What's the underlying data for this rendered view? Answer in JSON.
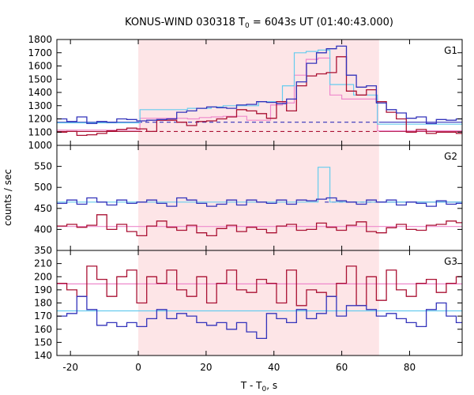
{
  "chart_data": {
    "type": "line",
    "title": {
      "main": "KONUS-WIND 030318 T",
      "sub": "0",
      "rest": " = 6043s UT (01:40:43.000)"
    },
    "xlabel": {
      "main": "T - T",
      "sub": "0",
      "rest": ", s"
    },
    "ylabel": "counts / sec",
    "xlim": [
      -24,
      95.5
    ],
    "xticks": [
      -20,
      0,
      20,
      40,
      60,
      80
    ],
    "highlight_interval": [
      0,
      71
    ],
    "colors": {
      "blue": "#3333bb",
      "light_blue": "#66ccee",
      "red": "#aa1133",
      "pink": "#ee88cc",
      "shade": "#fde5e7"
    },
    "panels": [
      {
        "name": "G1",
        "ylim": [
          1000,
          1800
        ],
        "yticks": [
          1000,
          1100,
          1200,
          1300,
          1400,
          1500,
          1600,
          1700,
          1800
        ],
        "series": [
          {
            "role": "data-blue",
            "x0": -24,
            "step": 2.944,
            "values": [
              1200,
              1180,
              1215,
              1165,
              1180,
              1175,
              1200,
              1195,
              1185,
              1190,
              1195,
              1200,
              1250,
              1260,
              1280,
              1290,
              1285,
              1280,
              1305,
              1310,
              1330,
              1325,
              1315,
              1350,
              1480,
              1620,
              1700,
              1730,
              1750,
              1530,
              1440,
              1450,
              1320,
              1270,
              1245,
              1205,
              1215,
              1165,
              1195,
              1190,
              1200,
              1205
            ]
          },
          {
            "role": "data-red",
            "x0": -24,
            "step": 2.944,
            "values": [
              1100,
              1105,
              1075,
              1080,
              1090,
              1110,
              1120,
              1130,
              1125,
              1105,
              1190,
              1190,
              1175,
              1150,
              1180,
              1185,
              1200,
              1215,
              1270,
              1260,
              1240,
              1205,
              1330,
              1260,
              1450,
              1525,
              1540,
              1550,
              1670,
              1410,
              1380,
              1420,
              1330,
              1250,
              1200,
              1100,
              1120,
              1090,
              1100,
              1100,
              1090,
              1120
            ]
          },
          {
            "role": "fit-light-blue",
            "x0": -24,
            "step": 3.5,
            "values": [
              1170,
              1170,
              1170,
              1170,
              1170,
              1170,
              1170,
              1270,
              1270,
              1270,
              1270,
              1280,
              1280,
              1290,
              1300,
              1300,
              1300,
              1330,
              1330,
              1450,
              1700,
              1710,
              1720,
              1460,
              1460,
              1380,
              1380,
              1160,
              1160,
              1160,
              1160,
              1160,
              1160,
              1160,
              1160
            ]
          },
          {
            "role": "fit-pink",
            "x0": -24,
            "step": 3.5,
            "values": [
              1115,
              1115,
              1115,
              1115,
              1115,
              1115,
              1115,
              1205,
              1205,
              1205,
              1205,
              1200,
              1210,
              1215,
              1220,
              1220,
              1190,
              1190,
              1305,
              1320,
              1530,
              1650,
              1660,
              1380,
              1350,
              1350,
              1350,
              1110,
              1110,
              1110,
              1110,
              1110,
              1110,
              1110,
              1110
            ]
          }
        ],
        "flat_lines": [
          {
            "role": "bg-blue",
            "y": 1175,
            "x_from": -24,
            "x_to": 95.5,
            "dashed_from": 0,
            "dashed_to": 71
          },
          {
            "role": "bg-red",
            "y": 1105,
            "x_from": -24,
            "x_to": 95.5,
            "dashed_from": 0,
            "dashed_to": 71
          }
        ]
      },
      {
        "name": "G2",
        "ylim": [
          350,
          600
        ],
        "yticks": [
          350,
          400,
          450,
          500,
          550
        ],
        "series": [
          {
            "role": "data-blue",
            "x0": -24,
            "step": 2.944,
            "values": [
              462,
              470,
              460,
              475,
              465,
              458,
              470,
              462,
              465,
              470,
              462,
              455,
              475,
              470,
              462,
              455,
              460,
              470,
              458,
              470,
              465,
              462,
              470,
              460,
              470,
              468,
              472,
              475,
              468,
              465,
              460,
              470,
              465,
              470,
              458,
              465,
              462,
              455,
              468,
              460,
              462,
              458
            ]
          },
          {
            "role": "data-red",
            "x0": -24,
            "step": 2.944,
            "values": [
              408,
              412,
              405,
              410,
              435,
              400,
              412,
              395,
              385,
              408,
              420,
              405,
              398,
              410,
              392,
              385,
              402,
              410,
              395,
              405,
              400,
              392,
              408,
              412,
              398,
              400,
              415,
              405,
              398,
              410,
              418,
              395,
              392,
              404,
              412,
              400,
              398,
              410,
              412,
              420,
              416,
              412
            ]
          },
          {
            "role": "fit-light-blue",
            "x0": -24,
            "step": 3.5,
            "values": [
              465,
              465,
              465,
              465,
              465,
              465,
              465,
              465,
              465,
              465,
              465,
              465,
              465,
              465,
              465,
              465,
              465,
              465,
              465,
              465,
              465,
              465,
              548,
              465,
              465,
              465,
              465,
              465,
              465,
              465,
              465,
              465,
              465,
              465,
              465
            ]
          },
          {
            "role": "fit-pink",
            "x0": -24,
            "step": 3.5,
            "values": [
              407,
              407,
              407,
              407,
              407,
              407,
              407,
              407,
              407,
              407,
              407,
              407,
              407,
              407,
              407,
              407,
              407,
              407,
              407,
              407,
              407,
              407,
              407,
              407,
              407,
              407,
              407,
              407,
              407,
              407,
              407,
              407,
              407,
              407,
              407
            ]
          }
        ],
        "flat_lines": [
          {
            "role": "bg-blue",
            "y": 465,
            "x_from": 55,
            "x_to": 95.5,
            "dashed_from": 55,
            "dashed_to": 71
          }
        ]
      },
      {
        "name": "G3",
        "ylim": [
          140,
          220
        ],
        "yticks": [
          140,
          150,
          160,
          170,
          180,
          190,
          200,
          210
        ],
        "series": [
          {
            "role": "data-blue",
            "x0": -24,
            "step": 2.944,
            "values": [
              170,
              172,
              185,
              175,
              163,
              165,
              162,
              165,
              162,
              168,
              175,
              168,
              172,
              170,
              165,
              163,
              165,
              160,
              165,
              158,
              153,
              172,
              168,
              165,
              175,
              168,
              172,
              185,
              170,
              178,
              178,
              175,
              170,
              172,
              168,
              165,
              162,
              175,
              180,
              170,
              165,
              162
            ]
          },
          {
            "role": "data-red",
            "x0": -24,
            "step": 2.944,
            "values": [
              195,
              190,
              185,
              208,
              198,
              185,
              200,
              205,
              180,
              200,
              195,
              205,
              190,
              185,
              200,
              180,
              195,
              205,
              190,
              188,
              198,
              195,
              180,
              205,
              178,
              190,
              188,
              185,
              195,
              208,
              178,
              200,
              182,
              205,
              190,
              185,
              195,
              198,
              188,
              195,
              200,
              195
            ]
          },
          {
            "role": "fit-light-blue",
            "x0": -24,
            "step": 3.5,
            "values": [
              174,
              174,
              174,
              174,
              174,
              174,
              174,
              174,
              174,
              174,
              174,
              174,
              174,
              174,
              174,
              174,
              174,
              174,
              174,
              174,
              174,
              174,
              174,
              174,
              174,
              174,
              174,
              174,
              174,
              174,
              174,
              174,
              174,
              174,
              174
            ]
          },
          {
            "role": "fit-pink",
            "x0": -24,
            "step": 3.5,
            "values": [
              194.5,
              194.5,
              194.5,
              194.5,
              194.5,
              194.5,
              194.5,
              194.5,
              194.5,
              194.5,
              194.5,
              194.5,
              194.5,
              194.5,
              194.5,
              194.5,
              194.5,
              194.5,
              194.5,
              194.5,
              194.5,
              194.5,
              194.5,
              194.5,
              194.5,
              194.5,
              194.5,
              194.5,
              194.5,
              194.5,
              194.5,
              194.5,
              194.5,
              194.5,
              194.5
            ]
          }
        ],
        "flat_lines": []
      }
    ]
  }
}
